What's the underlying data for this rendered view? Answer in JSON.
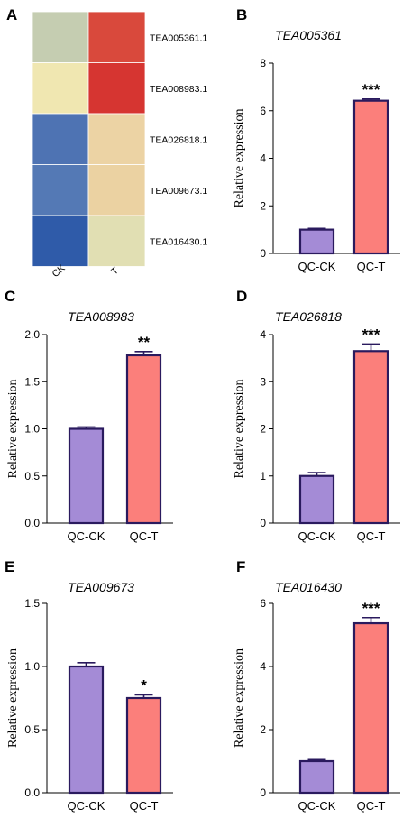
{
  "chart_data": [
    {
      "panel": "A",
      "type": "heatmap",
      "columns": [
        "CK",
        "T"
      ],
      "rows": [
        "TEA005361.1",
        "TEA008983.1",
        "TEA026818.1",
        "TEA009673.1",
        "TEA016430.1"
      ],
      "cell_colors": [
        [
          "#c5cdb1",
          "#d9493c"
        ],
        [
          "#f0e7b1",
          "#d63531"
        ],
        [
          "#4e73b3",
          "#ecd3a4"
        ],
        [
          "#5479b5",
          "#ebd2a2"
        ],
        [
          "#2f5ba9",
          "#e1dfb3"
        ]
      ]
    },
    {
      "panel": "B",
      "type": "bar",
      "title": "TEA005361",
      "ylabel": "Relative expression",
      "categories": [
        "QC-CK",
        "QC-T"
      ],
      "values": [
        1.0,
        6.42
      ],
      "errors": [
        0.05,
        0.07
      ],
      "significance": [
        "",
        "***"
      ],
      "ylim": [
        0,
        8
      ],
      "yticks": [
        "0",
        "2",
        "4",
        "6",
        "8"
      ]
    },
    {
      "panel": "C",
      "type": "bar",
      "title": "TEA008983",
      "ylabel": "Relative expression",
      "categories": [
        "QC-CK",
        "QC-T"
      ],
      "values": [
        1.0,
        1.78
      ],
      "errors": [
        0.02,
        0.04
      ],
      "significance": [
        "",
        "**"
      ],
      "ylim": [
        0,
        2.0
      ],
      "yticks": [
        "0.0",
        "0.5",
        "1.0",
        "1.5",
        "2.0"
      ]
    },
    {
      "panel": "D",
      "type": "bar",
      "title": "TEA026818",
      "ylabel": "Relative expression",
      "categories": [
        "QC-CK",
        "QC-T"
      ],
      "values": [
        1.0,
        3.65
      ],
      "errors": [
        0.07,
        0.15
      ],
      "significance": [
        "",
        "***"
      ],
      "ylim": [
        0,
        4
      ],
      "yticks": [
        "0",
        "1",
        "2",
        "3",
        "4"
      ]
    },
    {
      "panel": "E",
      "type": "bar",
      "title": "TEA009673",
      "ylabel": "Relative expression",
      "categories": [
        "QC-CK",
        "QC-T"
      ],
      "values": [
        1.0,
        0.75
      ],
      "errors": [
        0.03,
        0.025
      ],
      "significance": [
        "",
        "*"
      ],
      "ylim": [
        0,
        1.5
      ],
      "yticks": [
        "0.0",
        "0.5",
        "1.0",
        "1.5"
      ]
    },
    {
      "panel": "F",
      "type": "bar",
      "title": "TEA016430",
      "ylabel": "Relative expression",
      "categories": [
        "QC-CK",
        "QC-T"
      ],
      "values": [
        1.0,
        5.37
      ],
      "errors": [
        0.05,
        0.18
      ],
      "significance": [
        "",
        "***"
      ],
      "ylim": [
        0,
        6
      ],
      "yticks": [
        "0",
        "2",
        "4",
        "6"
      ]
    }
  ],
  "colors": {
    "ck_bar": "#a48bd6",
    "t_bar": "#fb7f7b",
    "outline": "#2a1a5e"
  }
}
